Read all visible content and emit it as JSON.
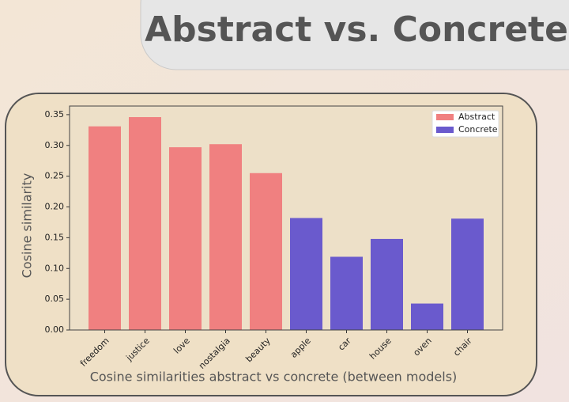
{
  "title": "Abstract vs. Concrete",
  "chart_data": {
    "type": "bar",
    "categories": [
      "freedom",
      "justice",
      "love",
      "nostalgia",
      "beauty",
      "apple",
      "car",
      "house",
      "oven",
      "chair"
    ],
    "series": [
      {
        "name": "Abstract",
        "color": "#f08080",
        "values": [
          0.331,
          0.346,
          0.297,
          0.302,
          0.255,
          null,
          null,
          null,
          null,
          null
        ]
      },
      {
        "name": "Concrete",
        "color": "#6a5acd",
        "values": [
          null,
          null,
          null,
          null,
          null,
          0.182,
          0.119,
          0.148,
          0.043,
          0.181
        ]
      }
    ],
    "ylabel": "Cosine similarity",
    "xlabel": "Cosine similarities abstract vs concrete (between models)",
    "ylim": [
      0,
      0.364
    ],
    "yticks": [
      {
        "value": 0,
        "label": "0.00"
      },
      {
        "value": 0.05,
        "label": "0.05"
      },
      {
        "value": 0.1,
        "label": "0.10"
      },
      {
        "value": 0.15,
        "label": "0.15"
      },
      {
        "value": 0.2,
        "label": "0.20"
      },
      {
        "value": 0.25,
        "label": "0.25"
      },
      {
        "value": 0.3,
        "label": "0.30"
      },
      {
        "value": 0.35,
        "label": "0.35"
      }
    ],
    "legend": "upper right"
  }
}
